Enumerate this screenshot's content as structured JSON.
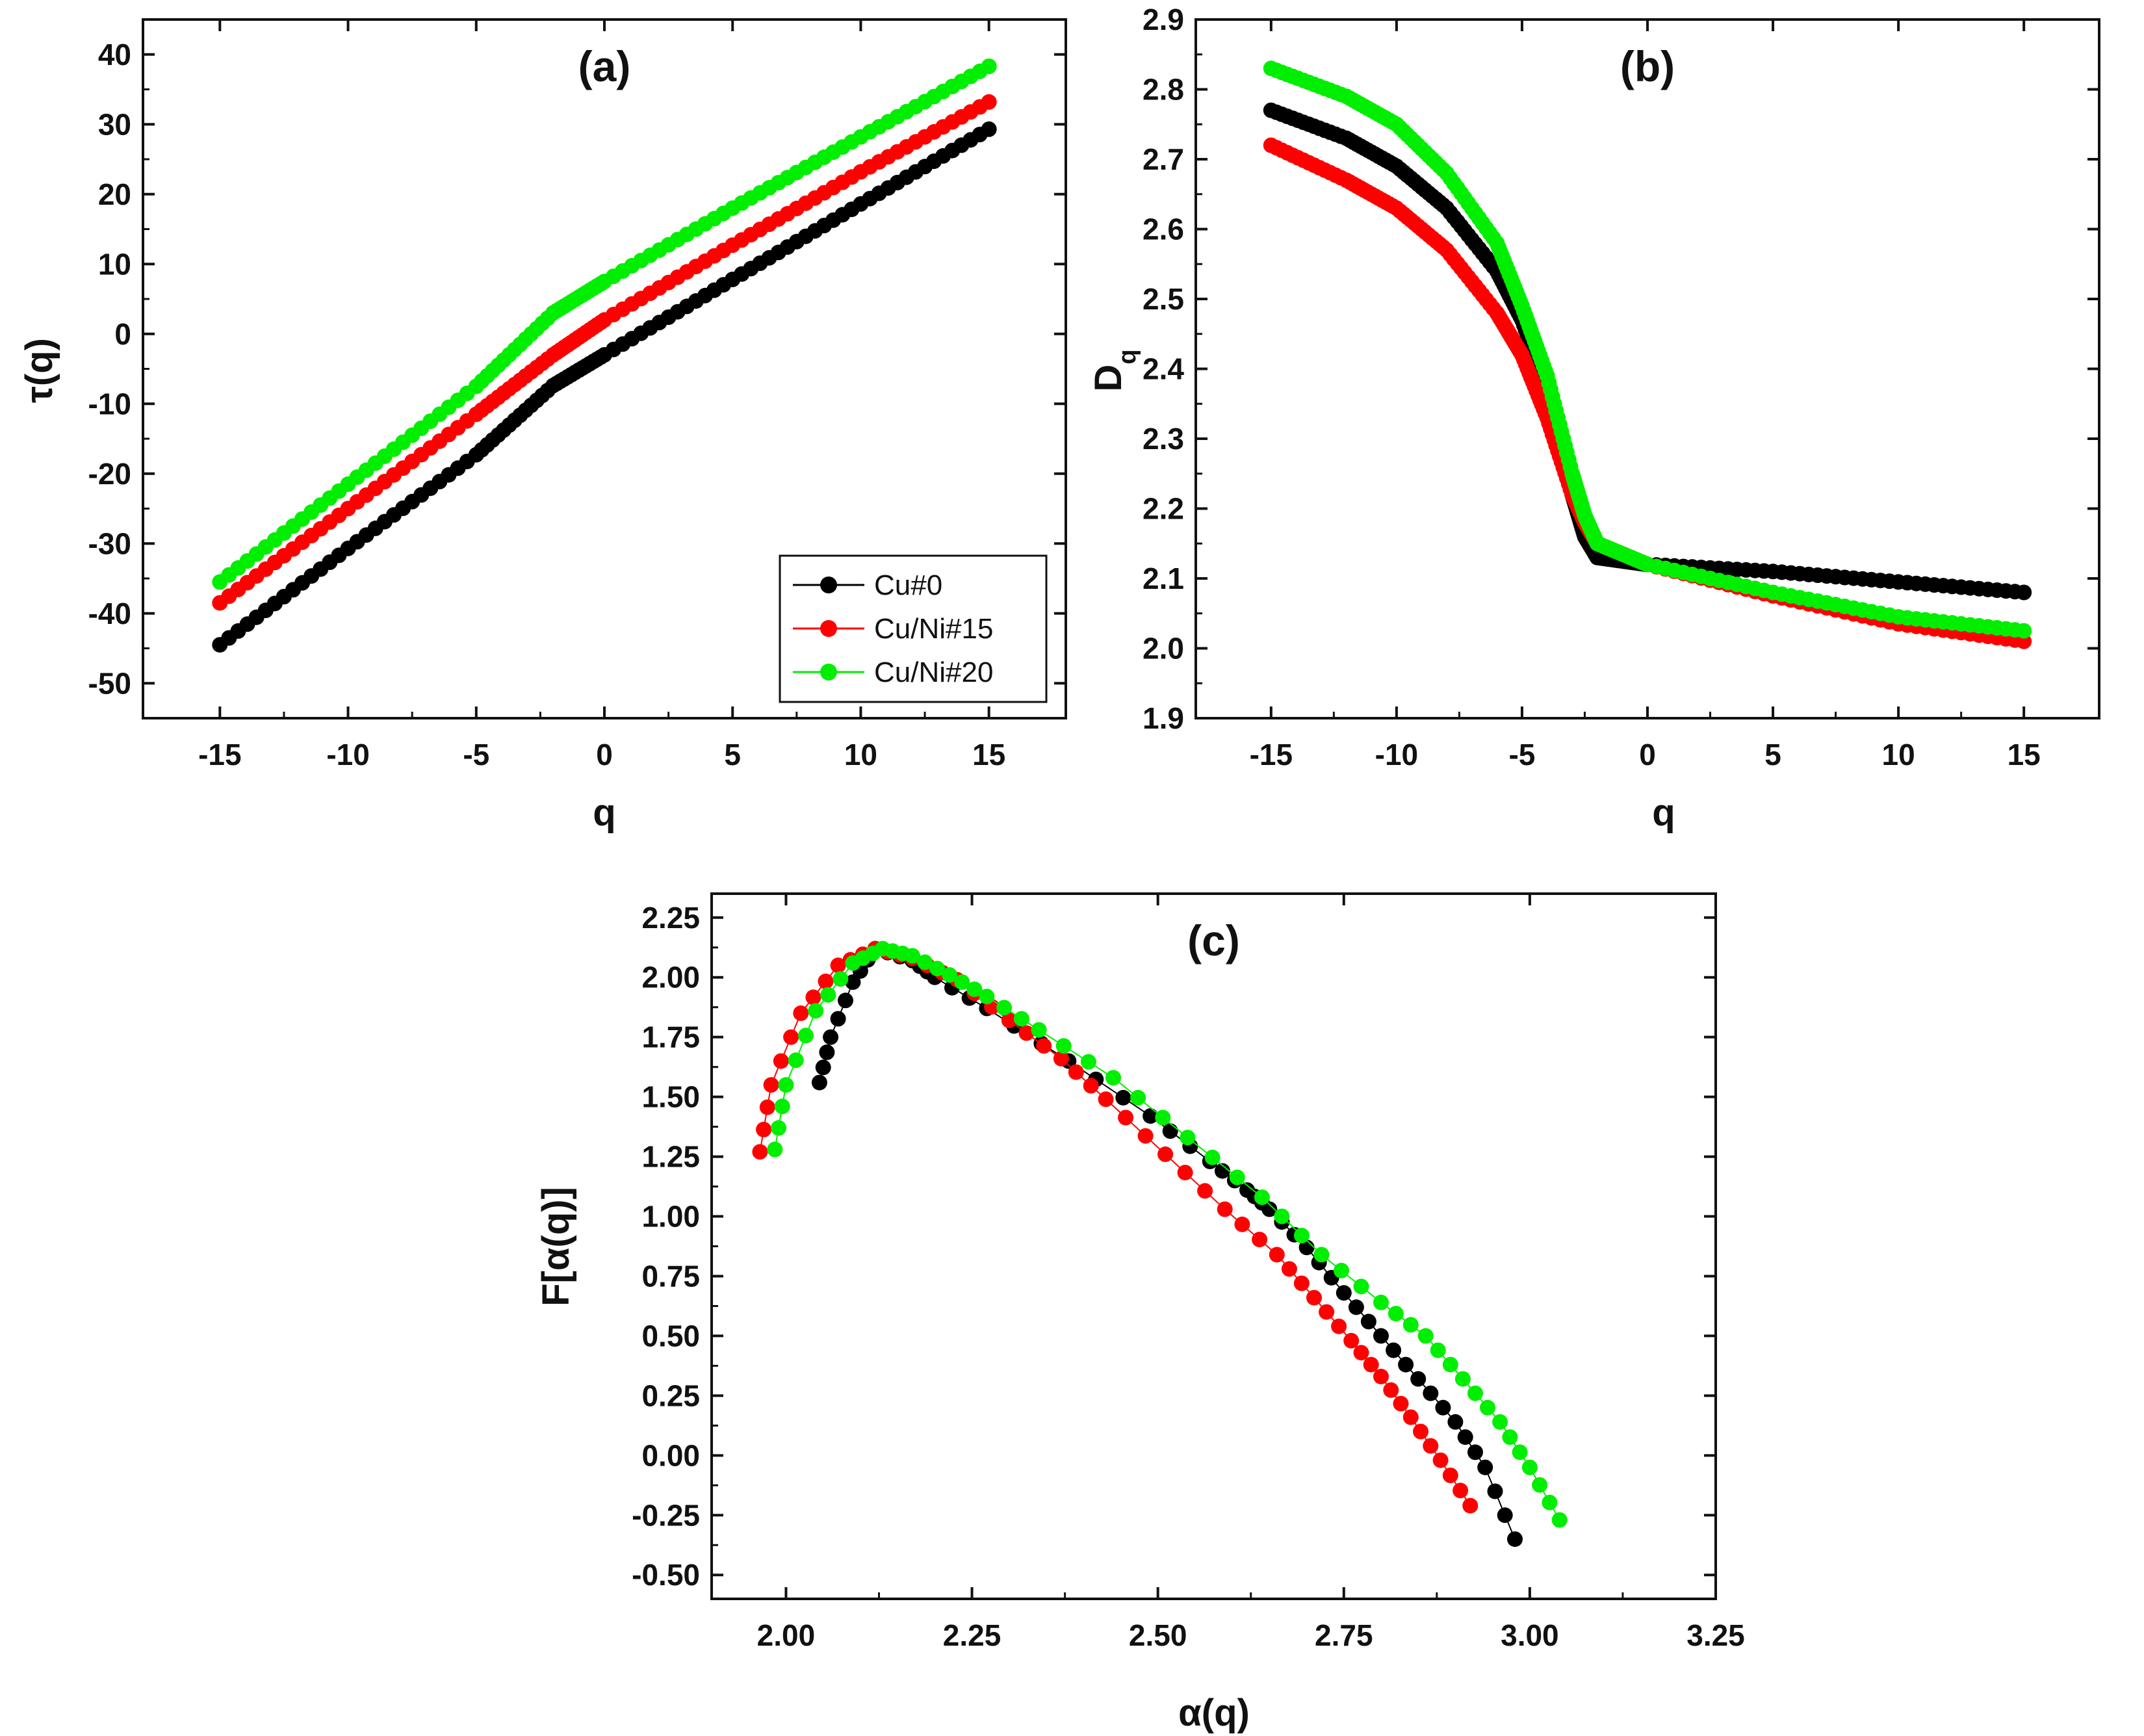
{
  "chart_data": [
    {
      "type": "scatter",
      "panel": "(a)",
      "xlabel": "q",
      "ylabel": "τ(q)",
      "xlim": [
        -18,
        18
      ],
      "ylim": [
        -55,
        45
      ],
      "xticks": [
        -15,
        -10,
        -5,
        0,
        5,
        10,
        15
      ],
      "yticks": [
        -50,
        -40,
        -30,
        -20,
        -10,
        0,
        10,
        20,
        30,
        40
      ],
      "xtick_labels": [
        "-15",
        "-10",
        "-5",
        "0",
        "5",
        "10",
        "15"
      ],
      "ytick_labels": [
        "-50",
        "-40",
        "-30",
        "-20",
        "-10",
        "0",
        "10",
        "20",
        "30",
        "40"
      ],
      "legend_position": "bottom-right",
      "series": [
        {
          "name": "Cu#0",
          "color": "#000000",
          "x": [
            -15,
            -10,
            -5,
            -2,
            0,
            5,
            10,
            15
          ],
          "values": [
            -44.5,
            -30.7,
            -17.3,
            -7.4,
            -3.0,
            7.8,
            18.6,
            29.3
          ]
        },
        {
          "name": "Cu/Ni#15",
          "color": "#ff0000",
          "x": [
            -15,
            -10,
            -5,
            -2,
            0,
            5,
            10,
            15
          ],
          "values": [
            -38.5,
            -25.0,
            -11.5,
            -3.0,
            2.0,
            12.7,
            23.2,
            33.2
          ]
        },
        {
          "name": "Cu/Ni#20",
          "color": "#00ee00",
          "x": [
            -15,
            -10,
            -5,
            -2,
            0,
            5,
            10,
            15
          ],
          "values": [
            -35.5,
            -21.5,
            -7.5,
            3.0,
            7.5,
            18.0,
            28.2,
            38.3
          ]
        }
      ]
    },
    {
      "type": "scatter",
      "panel": "(b)",
      "xlabel": "q",
      "ylabel": "D",
      "ylabel_sub": "q",
      "xlim": [
        -18,
        18
      ],
      "ylim": [
        1.9,
        2.9
      ],
      "xticks": [
        -15,
        -10,
        -5,
        0,
        5,
        10,
        15
      ],
      "yticks": [
        1.9,
        2.0,
        2.1,
        2.2,
        2.3,
        2.4,
        2.5,
        2.6,
        2.7,
        2.8,
        2.9
      ],
      "xtick_labels": [
        "-15",
        "-10",
        "-5",
        "0",
        "5",
        "10",
        "15"
      ],
      "ytick_labels": [
        "1.9",
        "2.0",
        "2.1",
        "2.2",
        "2.3",
        "2.4",
        "2.5",
        "2.6",
        "2.7",
        "2.8",
        "2.9"
      ],
      "series": [
        {
          "name": "Cu#0",
          "color": "#000000",
          "x": [
            -15,
            -12,
            -10,
            -8,
            -6,
            -5,
            -4,
            -3,
            -2.5,
            -2,
            -1,
            0,
            5,
            10,
            15
          ],
          "values": [
            2.77,
            2.73,
            2.69,
            2.63,
            2.54,
            2.47,
            2.37,
            2.22,
            2.16,
            2.13,
            2.125,
            2.12,
            2.11,
            2.095,
            2.08
          ]
        },
        {
          "name": "Cu/Ni#15",
          "color": "#ff0000",
          "x": [
            -15,
            -12,
            -10,
            -8,
            -6,
            -5,
            -4,
            -3,
            -2.5,
            -2,
            -1,
            0,
            5,
            10,
            15
          ],
          "values": [
            2.72,
            2.67,
            2.63,
            2.57,
            2.48,
            2.42,
            2.33,
            2.22,
            2.18,
            2.15,
            2.135,
            2.12,
            2.075,
            2.035,
            2.01
          ]
        },
        {
          "name": "Cu/Ni#20",
          "color": "#00ee00",
          "x": [
            -15,
            -12,
            -10,
            -8,
            -6,
            -5,
            -4,
            -3,
            -2.5,
            -2,
            -1,
            0,
            5,
            10,
            15
          ],
          "values": [
            2.83,
            2.79,
            2.75,
            2.68,
            2.58,
            2.49,
            2.39,
            2.25,
            2.19,
            2.15,
            2.135,
            2.12,
            2.08,
            2.045,
            2.025
          ]
        }
      ]
    },
    {
      "type": "line",
      "panel": "(c)",
      "xlabel": "α(q)",
      "ylabel": "F[α(q)]",
      "xlim": [
        1.9,
        3.25
      ],
      "ylim": [
        -0.6,
        2.35
      ],
      "xticks": [
        2.0,
        2.25,
        2.5,
        2.75,
        3.0,
        3.25
      ],
      "yticks": [
        -0.5,
        -0.25,
        0.0,
        0.25,
        0.5,
        0.75,
        1.0,
        1.25,
        1.5,
        1.75,
        2.0,
        2.25
      ],
      "xtick_labels": [
        "2.00",
        "2.25",
        "2.50",
        "2.75",
        "3.00",
        "3.25"
      ],
      "ytick_labels": [
        "-0.50",
        "-0.25",
        "0.00",
        "0.25",
        "0.50",
        "0.75",
        "1.00",
        "1.25",
        "1.50",
        "1.75",
        "2.00",
        "2.25"
      ],
      "series": [
        {
          "name": "Cu#0",
          "color": "#000000",
          "x": [
            2.045,
            2.06,
            2.09,
            2.12,
            2.17,
            2.2,
            2.27,
            2.38,
            2.49,
            2.57,
            2.62,
            2.65,
            2.7,
            2.75,
            2.8,
            2.85,
            2.9,
            2.94,
            2.98
          ],
          "values": [
            1.56,
            1.75,
            1.98,
            2.12,
            2.07,
            2.0,
            1.87,
            1.65,
            1.42,
            1.23,
            1.11,
            1.03,
            0.87,
            0.68,
            0.5,
            0.32,
            0.14,
            -0.05,
            -0.35
          ]
        },
        {
          "name": "Cu/Ni#15",
          "color": "#ff0000",
          "x": [
            1.965,
            1.98,
            2.02,
            2.07,
            2.12,
            2.17,
            2.23,
            2.3,
            2.37,
            2.43,
            2.51,
            2.59,
            2.66,
            2.71,
            2.76,
            2.8,
            2.84,
            2.88,
            2.92
          ],
          "values": [
            1.27,
            1.55,
            1.85,
            2.05,
            2.12,
            2.08,
            1.99,
            1.82,
            1.66,
            1.49,
            1.26,
            1.03,
            0.84,
            0.66,
            0.48,
            0.33,
            0.16,
            -0.02,
            -0.21
          ]
        },
        {
          "name": "Cu/Ni#20",
          "color": "#00ee00",
          "x": [
            1.985,
            2.0,
            2.04,
            2.09,
            2.13,
            2.17,
            2.22,
            2.27,
            2.34,
            2.44,
            2.54,
            2.64,
            2.72,
            2.8,
            2.86,
            2.91,
            2.96,
            3.0,
            3.04
          ],
          "values": [
            1.28,
            1.55,
            1.86,
            2.06,
            2.12,
            2.09,
            2.01,
            1.92,
            1.78,
            1.58,
            1.33,
            1.08,
            0.84,
            0.64,
            0.5,
            0.32,
            0.14,
            -0.05,
            -0.27
          ]
        }
      ]
    }
  ]
}
